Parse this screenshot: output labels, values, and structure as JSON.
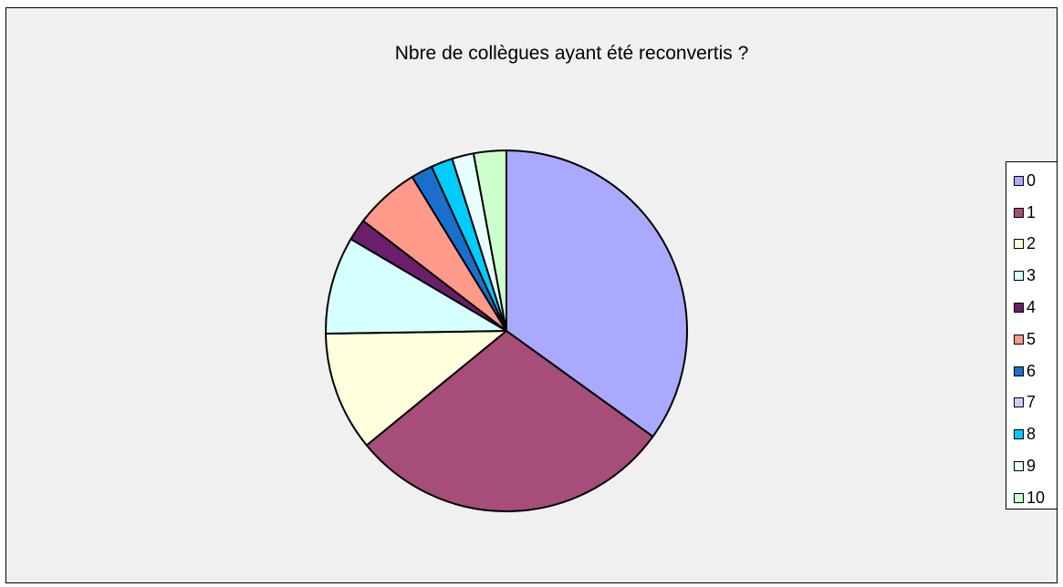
{
  "chart_data": {
    "type": "pie",
    "title": "Nbre de collègues ayant été reconvertis ?",
    "categories": [
      "0",
      "1",
      "2",
      "3",
      "4",
      "5",
      "6",
      "7",
      "8",
      "9",
      "10"
    ],
    "values": [
      36,
      30,
      11,
      9,
      2,
      6,
      2,
      0,
      2,
      2,
      3
    ],
    "colors": [
      "#a9a9ff",
      "#a64d79",
      "#ffffdd",
      "#d6ffff",
      "#6b1f6b",
      "#ff9a8a",
      "#1a6fcc",
      "#ccccff",
      "#00ccff",
      "#e8ffff",
      "#ccffcc"
    ],
    "legend": "right"
  }
}
